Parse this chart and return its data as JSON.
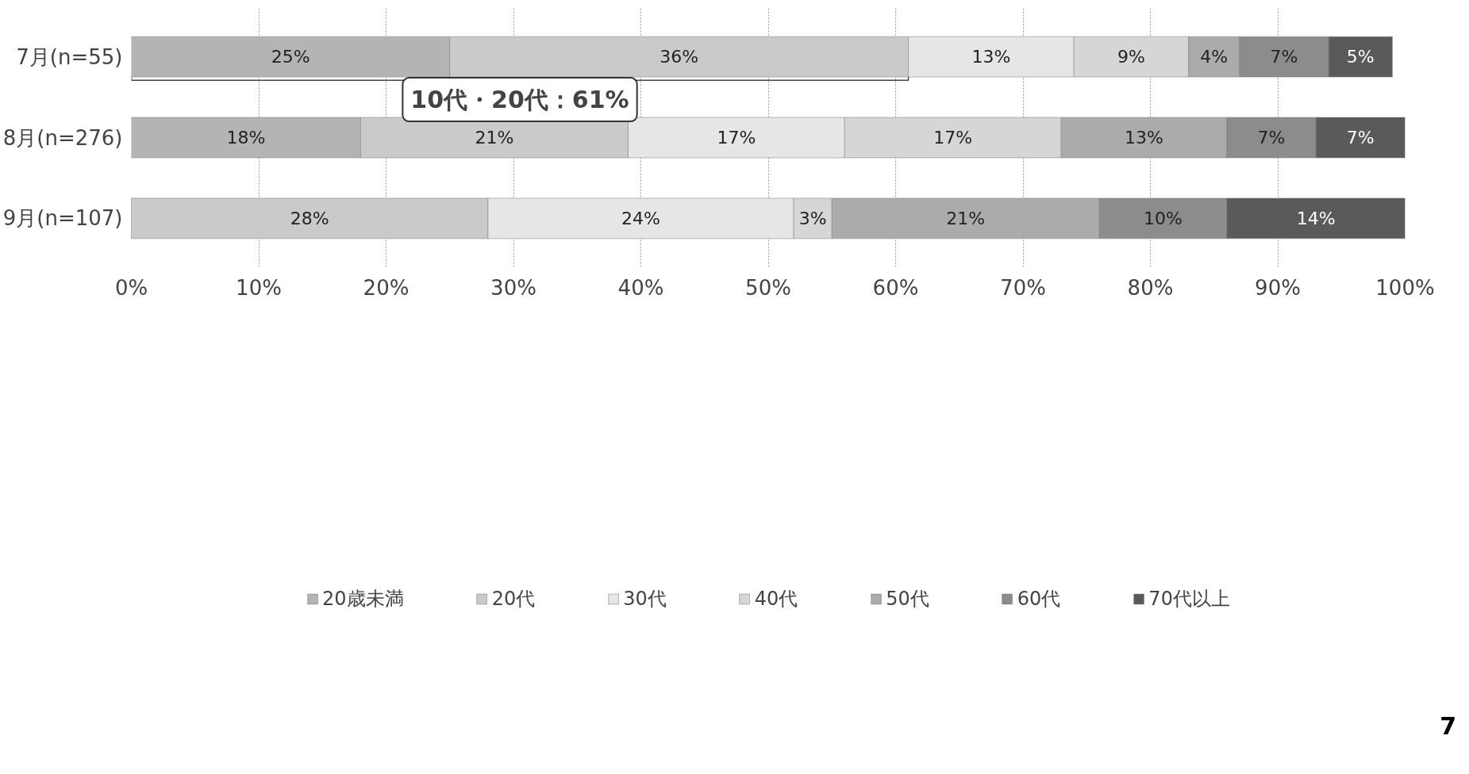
{
  "chart_data": {
    "type": "bar",
    "orientation": "horizontal",
    "stacked": true,
    "categories": [
      "7月(n=55)",
      "8月(n=276)",
      "9月(n=107)"
    ],
    "series": [
      {
        "name": "20歳未満",
        "color": "#b4b4b4",
        "values": [
          25,
          18,
          null
        ],
        "value_labels": [
          "25%",
          "18%",
          null
        ]
      },
      {
        "name": "20代",
        "color": "#cacaca",
        "values": [
          36,
          21,
          28
        ],
        "value_labels": [
          "36%",
          "21%",
          "28%"
        ]
      },
      {
        "name": "30代",
        "color": "#e6e6e6",
        "values": [
          13,
          17,
          24
        ],
        "value_labels": [
          "13%",
          "17%",
          "24%"
        ]
      },
      {
        "name": "40代",
        "color": "#d6d6d6",
        "values": [
          9,
          17,
          3
        ],
        "value_labels": [
          "9%",
          "17%",
          "3%"
        ]
      },
      {
        "name": "50代",
        "color": "#ababab",
        "values": [
          4,
          13,
          21
        ],
        "value_labels": [
          "4%",
          "13%",
          "21%"
        ]
      },
      {
        "name": "60代",
        "color": "#8c8c8c",
        "values": [
          7,
          7,
          10
        ],
        "value_labels": [
          "7%",
          "7%",
          "10%"
        ]
      },
      {
        "name": "70代以上",
        "color": "#5a5a5a",
        "values": [
          5,
          7,
          14
        ],
        "value_labels": [
          "5%",
          "7%",
          "14%"
        ]
      }
    ],
    "xlim": [
      0,
      100
    ],
    "xticks": [
      {
        "value": 0,
        "label": "0%"
      },
      {
        "value": 10,
        "label": "10%"
      },
      {
        "value": 20,
        "label": "20%"
      },
      {
        "value": 30,
        "label": "30%"
      },
      {
        "value": 40,
        "label": "40%"
      },
      {
        "value": 50,
        "label": "50%"
      },
      {
        "value": 60,
        "label": "60%"
      },
      {
        "value": 70,
        "label": "70%"
      },
      {
        "value": 80,
        "label": "80%"
      },
      {
        "value": 90,
        "label": "90%"
      },
      {
        "value": 100,
        "label": "100%"
      }
    ],
    "grid": "x",
    "legend": "bottom",
    "annotations": [
      "10代・20代：61%",
      "7"
    ]
  }
}
